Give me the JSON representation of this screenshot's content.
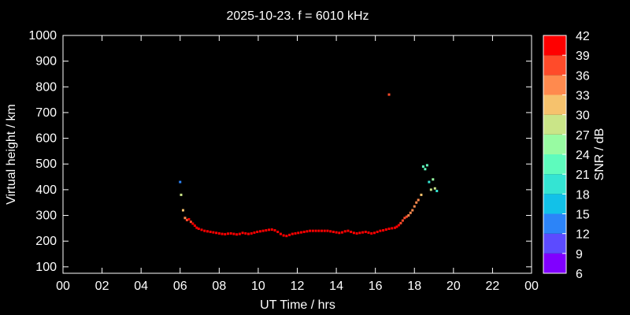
{
  "chart_data": {
    "type": "scatter",
    "title": "2025-10-23. f = 6010 kHz",
    "xlabel": "UT Time / hrs",
    "ylabel": "Virtual height / km",
    "xlim": [
      0,
      24
    ],
    "ylim": [
      75,
      1000
    ],
    "x_ticks": [
      "00",
      "02",
      "04",
      "06",
      "08",
      "10",
      "12",
      "14",
      "16",
      "18",
      "20",
      "22",
      "00"
    ],
    "y_ticks": [
      100,
      200,
      300,
      400,
      500,
      600,
      700,
      800,
      900,
      1000
    ],
    "grid": false,
    "colorbar": {
      "label": "SNR / dB",
      "ticks": [
        6,
        9,
        12,
        15,
        18,
        21,
        24,
        27,
        30,
        33,
        36,
        39,
        42
      ],
      "levels": [
        {
          "from": 6,
          "to": 9,
          "color": "#8000ff"
        },
        {
          "from": 9,
          "to": 12,
          "color": "#5c4bff"
        },
        {
          "from": 12,
          "to": 15,
          "color": "#2c84f8"
        },
        {
          "from": 15,
          "to": 18,
          "color": "#12c1e8"
        },
        {
          "from": 18,
          "to": 21,
          "color": "#34e4d3"
        },
        {
          "from": 21,
          "to": 24,
          "color": "#5efbbd"
        },
        {
          "from": 24,
          "to": 27,
          "color": "#98fba2"
        },
        {
          "from": 27,
          "to": 30,
          "color": "#cae588"
        },
        {
          "from": 30,
          "to": 33,
          "color": "#f6c26d"
        },
        {
          "from": 33,
          "to": 36,
          "color": "#ff8a4e"
        },
        {
          "from": 36,
          "to": 39,
          "color": "#ff4b2a"
        },
        {
          "from": 39,
          "to": 42,
          "color": "#ff0000"
        }
      ]
    },
    "series": [
      {
        "x": [
          6.0,
          6.05,
          6.15,
          6.25,
          6.35,
          6.45,
          6.55,
          6.65,
          6.75,
          6.85,
          6.95,
          7.1,
          7.25,
          7.4,
          7.55,
          7.7,
          7.85,
          8.0,
          8.15,
          8.3,
          8.45,
          8.6,
          8.75,
          8.9,
          9.05,
          9.2,
          9.35,
          9.5,
          9.65,
          9.8,
          9.95,
          10.1,
          10.25,
          10.4,
          10.55,
          10.7,
          10.85,
          11.0,
          11.15,
          11.3,
          11.45,
          11.6,
          11.75,
          11.9,
          12.05,
          12.2,
          12.35,
          12.5,
          12.65,
          12.8,
          12.95,
          13.1,
          13.25,
          13.4,
          13.55,
          13.7,
          13.85,
          14.0,
          14.15,
          14.3,
          14.45,
          14.6,
          14.75,
          14.9,
          15.05,
          15.2,
          15.35,
          15.5,
          15.65,
          15.8,
          15.95,
          16.1,
          16.25,
          16.4,
          16.55,
          16.7,
          16.85,
          17.0,
          17.1,
          17.2,
          17.3,
          17.4,
          17.5,
          17.6,
          17.7,
          17.8,
          17.9,
          18.0,
          18.1,
          18.2,
          18.35,
          18.45,
          18.55,
          18.65,
          18.75,
          18.85,
          18.95,
          19.05,
          19.15,
          16.7
        ],
        "y": [
          430,
          380,
          320,
          290,
          282,
          285,
          275,
          268,
          260,
          252,
          248,
          244,
          240,
          238,
          236,
          234,
          232,
          230,
          228,
          227,
          229,
          230,
          228,
          226,
          228,
          232,
          230,
          228,
          230,
          233,
          236,
          238,
          240,
          242,
          244,
          245,
          242,
          236,
          228,
          222,
          220,
          224,
          228,
          230,
          232,
          234,
          236,
          238,
          240,
          240,
          240,
          240,
          240,
          240,
          240,
          238,
          236,
          234,
          232,
          234,
          238,
          240,
          236,
          232,
          230,
          232,
          234,
          236,
          233,
          230,
          232,
          236,
          240,
          242,
          245,
          248,
          250,
          252,
          256,
          262,
          270,
          280,
          290,
          295,
          300,
          310,
          320,
          335,
          350,
          360,
          380,
          490,
          480,
          495,
          430,
          400,
          440,
          405,
          395,
          770
        ],
        "snr": [
          13,
          29,
          31,
          34,
          38,
          39,
          38,
          40,
          41,
          41,
          41,
          41,
          41,
          41,
          41,
          41,
          41,
          41,
          41,
          41,
          41,
          41,
          41,
          41,
          41,
          41,
          41,
          41,
          41,
          41,
          41,
          41,
          41,
          41,
          41,
          41,
          41,
          41,
          41,
          41,
          41,
          41,
          41,
          41,
          41,
          41,
          41,
          41,
          41,
          41,
          41,
          41,
          41,
          41,
          41,
          41,
          41,
          41,
          41,
          41,
          41,
          41,
          41,
          41,
          41,
          41,
          41,
          41,
          41,
          41,
          41,
          41,
          41,
          41,
          41,
          40,
          40,
          40,
          39,
          39,
          38,
          38,
          37,
          37,
          35,
          35,
          34,
          33,
          33,
          33,
          32,
          23,
          21,
          22,
          20,
          27,
          26,
          28,
          20,
          37
        ]
      }
    ]
  }
}
